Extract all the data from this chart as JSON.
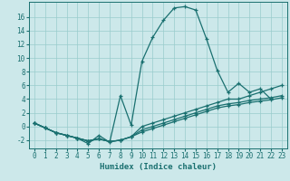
{
  "xlabel": "Humidex (Indice chaleur)",
  "background_color": "#cce8ea",
  "grid_color": "#99cccc",
  "line_color": "#1a7070",
  "series1_x": [
    0,
    1,
    2,
    3,
    4,
    5,
    6,
    7,
    8,
    9,
    10,
    11,
    12,
    13,
    14,
    15,
    16,
    17,
    18,
    19,
    20,
    21,
    22
  ],
  "series1_y": [
    0.5,
    -0.2,
    -0.9,
    -1.3,
    -1.7,
    -2.5,
    -1.3,
    -2.3,
    4.5,
    0.2,
    9.5,
    13.0,
    15.5,
    17.3,
    17.5,
    17.0,
    12.8,
    8.2,
    5.0,
    6.3,
    5.0,
    5.5,
    4.0
  ],
  "series2_x": [
    0,
    1,
    2,
    3,
    4,
    5,
    6,
    7,
    8,
    9,
    10,
    11,
    12,
    13,
    14,
    15,
    16,
    17,
    18,
    19,
    20,
    21,
    22,
    23
  ],
  "series2_y": [
    0.5,
    -0.2,
    -0.9,
    -1.3,
    -1.7,
    -2.1,
    -1.8,
    -2.2,
    -2.0,
    -1.5,
    0.0,
    0.5,
    1.0,
    1.5,
    2.0,
    2.5,
    3.0,
    3.5,
    4.0,
    4.0,
    4.5,
    5.0,
    5.5,
    6.0
  ],
  "series3_x": [
    0,
    1,
    2,
    3,
    4,
    5,
    6,
    7,
    8,
    9,
    10,
    11,
    12,
    13,
    14,
    15,
    16,
    17,
    18,
    19,
    20,
    21,
    22,
    23
  ],
  "series3_y": [
    0.5,
    -0.2,
    -0.9,
    -1.3,
    -1.7,
    -2.1,
    -1.8,
    -2.2,
    -2.0,
    -1.5,
    -0.5,
    0.0,
    0.5,
    1.0,
    1.5,
    2.0,
    2.5,
    3.0,
    3.3,
    3.5,
    3.8,
    4.0,
    4.2,
    4.5
  ],
  "series4_x": [
    0,
    1,
    2,
    3,
    4,
    5,
    6,
    7,
    8,
    9,
    10,
    11,
    12,
    13,
    14,
    15,
    16,
    17,
    18,
    19,
    20,
    21,
    22,
    23
  ],
  "series4_y": [
    0.5,
    -0.2,
    -0.9,
    -1.3,
    -1.7,
    -2.1,
    -1.8,
    -2.2,
    -2.0,
    -1.5,
    -0.8,
    -0.3,
    0.2,
    0.7,
    1.2,
    1.7,
    2.2,
    2.7,
    3.0,
    3.2,
    3.5,
    3.7,
    3.9,
    4.2
  ],
  "xlim": [
    -0.5,
    23.5
  ],
  "ylim": [
    -3.2,
    18.2
  ],
  "yticks": [
    -2,
    0,
    2,
    4,
    6,
    8,
    10,
    12,
    14,
    16
  ],
  "xticks": [
    0,
    1,
    2,
    3,
    4,
    5,
    6,
    7,
    8,
    9,
    10,
    11,
    12,
    13,
    14,
    15,
    16,
    17,
    18,
    19,
    20,
    21,
    22,
    23
  ],
  "xtick_labels": [
    "0",
    "1",
    "2",
    "3",
    "4",
    "5",
    "6",
    "7",
    "8",
    "9",
    "10",
    "11",
    "12",
    "13",
    "14",
    "15",
    "16",
    "17",
    "18",
    "19",
    "20",
    "21",
    "22",
    "23"
  ],
  "axis_fontsize": 6.5,
  "tick_fontsize": 5.5
}
